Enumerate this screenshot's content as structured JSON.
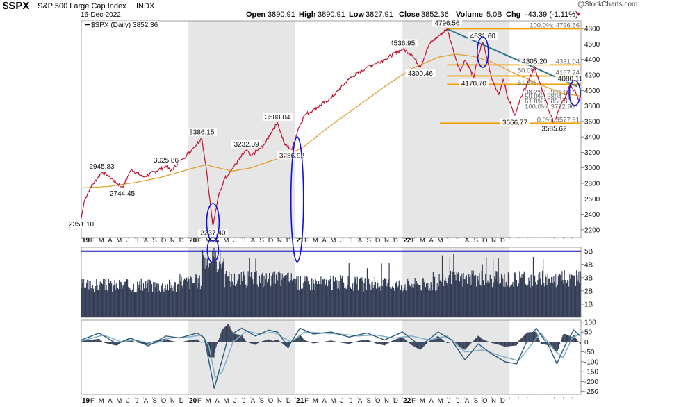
{
  "header": {
    "symbol": "$SPX",
    "name": "S&P 500 Large Cap Index",
    "exchange": "INDX",
    "date": "16-Dec-2022",
    "open_label": "Open",
    "open": "3890.91",
    "high_label": "High",
    "high": "3890.91",
    "low_label": "Low",
    "low": "3827.91",
    "close_label": "Close",
    "close": "3852.36",
    "volume_label": "Volume",
    "volume": "5.0B",
    "chg_label": "Chg",
    "chg": "-43.39 (-1.11%)",
    "chg_arrow": "▼",
    "watermark": "@StockCharts.com"
  },
  "legend": {
    "series": "$SPX (Daily) 3852.36"
  },
  "colors": {
    "price": "#c0102c",
    "ma": "#e0a030",
    "volume": "#333d55",
    "fib_orange": "#f0a000",
    "trendline": "#2f7a8a",
    "circle": "#1010dd",
    "macd_line": "#2b5a78",
    "macd_signal": "#7fb0c8",
    "histogram": "#333d55",
    "alt_band": "#e6e6e6"
  },
  "chart_data": [
    {
      "type": "line",
      "title": "$SPX (Daily) 3852.36",
      "ylim": [
        2100,
        4900
      ],
      "yticks": [
        2200,
        2400,
        2600,
        2800,
        3000,
        3200,
        3400,
        3600,
        3800,
        4000,
        4200,
        4400,
        4600,
        4800
      ],
      "x_years": [
        "19",
        "20",
        "21",
        "22"
      ],
      "x_months": [
        "F",
        "M",
        "A",
        "M",
        "J",
        "J",
        "A",
        "S",
        "O",
        "N",
        "D"
      ],
      "price_points": [
        {
          "t": 0.0,
          "v": 2351.1
        },
        {
          "t": 0.35,
          "v": 2580
        },
        {
          "t": 1.0,
          "v": 2740
        },
        {
          "t": 2.3,
          "v": 2945.83
        },
        {
          "t": 3.0,
          "v": 2900
        },
        {
          "t": 4.6,
          "v": 2744.45
        },
        {
          "t": 5.6,
          "v": 2980
        },
        {
          "t": 7.0,
          "v": 2880
        },
        {
          "t": 9.5,
          "v": 3025.86
        },
        {
          "t": 10.0,
          "v": 2960
        },
        {
          "t": 11.4,
          "v": 3120
        },
        {
          "t": 12.5,
          "v": 3250
        },
        {
          "t": 13.5,
          "v": 3386.15
        },
        {
          "t": 14.0,
          "v": 3000
        },
        {
          "t": 14.5,
          "v": 2500
        },
        {
          "t": 14.75,
          "v": 2237.4
        },
        {
          "t": 15.3,
          "v": 2600
        },
        {
          "t": 16.0,
          "v": 2850
        },
        {
          "t": 17.0,
          "v": 3000
        },
        {
          "t": 18.5,
          "v": 3232.39
        },
        {
          "t": 19.0,
          "v": 3150
        },
        {
          "t": 20.5,
          "v": 3300
        },
        {
          "t": 21.5,
          "v": 3500
        },
        {
          "t": 22.0,
          "v": 3580.84
        },
        {
          "t": 22.8,
          "v": 3300
        },
        {
          "t": 23.6,
          "v": 3236.92
        },
        {
          "t": 24.3,
          "v": 3500
        },
        {
          "t": 25.0,
          "v": 3680
        },
        {
          "t": 26.0,
          "v": 3750
        },
        {
          "t": 28.0,
          "v": 3900
        },
        {
          "t": 30.0,
          "v": 4150
        },
        {
          "t": 32.0,
          "v": 4300
        },
        {
          "t": 34.0,
          "v": 4400
        },
        {
          "t": 36.0,
          "v": 4536.95
        },
        {
          "t": 37.0,
          "v": 4470
        },
        {
          "t": 38.0,
          "v": 4300.46
        },
        {
          "t": 39.0,
          "v": 4600
        },
        {
          "t": 40.0,
          "v": 4700
        },
        {
          "t": 41.0,
          "v": 4796.56
        },
        {
          "t": 41.5,
          "v": 4600
        },
        {
          "t": 42.0,
          "v": 4400
        },
        {
          "t": 42.5,
          "v": 4250
        },
        {
          "t": 43.0,
          "v": 4400
        },
        {
          "t": 44.0,
          "v": 4170.7
        },
        {
          "t": 44.5,
          "v": 4450
        },
        {
          "t": 45.0,
          "v": 4631.6
        },
        {
          "t": 45.5,
          "v": 4400
        },
        {
          "t": 46.0,
          "v": 4150
        },
        {
          "t": 46.8,
          "v": 3950
        },
        {
          "t": 47.3,
          "v": 4150
        },
        {
          "t": 47.8,
          "v": 3900
        },
        {
          "t": 48.2,
          "v": 3800
        },
        {
          "t": 48.6,
          "v": 3666.77
        },
        {
          "t": 49.2,
          "v": 3900
        },
        {
          "t": 50.0,
          "v": 4100
        },
        {
          "t": 50.8,
          "v": 4305.2
        },
        {
          "t": 51.4,
          "v": 4100
        },
        {
          "t": 52.0,
          "v": 3900
        },
        {
          "t": 52.5,
          "v": 3700
        },
        {
          "t": 53.0,
          "v": 3585.62
        },
        {
          "t": 53.5,
          "v": 3750
        },
        {
          "t": 54.2,
          "v": 3900
        },
        {
          "t": 54.8,
          "v": 4080.11
        },
        {
          "t": 55.5,
          "v": 3950
        },
        {
          "t": 55.9,
          "v": 3852.36
        }
      ],
      "ma_points": [
        {
          "t": 0.0,
          "v": 2740
        },
        {
          "t": 3.0,
          "v": 2760
        },
        {
          "t": 6.0,
          "v": 2810
        },
        {
          "t": 9.0,
          "v": 2880
        },
        {
          "t": 12.0,
          "v": 2980
        },
        {
          "t": 14.0,
          "v": 3040
        },
        {
          "t": 15.0,
          "v": 3010
        },
        {
          "t": 17.0,
          "v": 2960
        },
        {
          "t": 19.0,
          "v": 3000
        },
        {
          "t": 21.0,
          "v": 3080
        },
        {
          "t": 23.0,
          "v": 3150
        },
        {
          "t": 25.0,
          "v": 3280
        },
        {
          "t": 28.0,
          "v": 3550
        },
        {
          "t": 31.0,
          "v": 3800
        },
        {
          "t": 34.0,
          "v": 4050
        },
        {
          "t": 37.0,
          "v": 4280
        },
        {
          "t": 40.0,
          "v": 4430
        },
        {
          "t": 42.0,
          "v": 4470
        },
        {
          "t": 44.0,
          "v": 4440
        },
        {
          "t": 46.0,
          "v": 4370
        },
        {
          "t": 48.0,
          "v": 4250
        },
        {
          "t": 50.0,
          "v": 4150
        },
        {
          "t": 52.0,
          "v": 4050
        },
        {
          "t": 54.0,
          "v": 3960
        },
        {
          "t": 55.9,
          "v": 3930
        }
      ],
      "annotations": [
        {
          "t": 0.0,
          "v": 2351.1,
          "text": "2351.10",
          "pos": "below"
        },
        {
          "t": 2.3,
          "v": 2945.83,
          "text": "2945.83",
          "pos": "above"
        },
        {
          "t": 4.6,
          "v": 2744.45,
          "text": "2744.45",
          "pos": "below"
        },
        {
          "t": 9.5,
          "v": 3025.86,
          "text": "3025.86",
          "pos": "above"
        },
        {
          "t": 13.5,
          "v": 3386.15,
          "text": "3386.15",
          "pos": "above"
        },
        {
          "t": 14.75,
          "v": 2237.4,
          "text": "2237.40",
          "pos": "below"
        },
        {
          "t": 18.5,
          "v": 3232.39,
          "text": "3232.39",
          "pos": "above"
        },
        {
          "t": 22.0,
          "v": 3580.84,
          "text": "3580.84",
          "pos": "above"
        },
        {
          "t": 23.6,
          "v": 3236.92,
          "text": "3236.92",
          "pos": "below"
        },
        {
          "t": 36.0,
          "v": 4536.95,
          "text": "4536.95",
          "pos": "above"
        },
        {
          "t": 38.0,
          "v": 4300.46,
          "text": "4300.46",
          "pos": "below"
        },
        {
          "t": 41.0,
          "v": 4796.56,
          "text": "4796.56",
          "pos": "above"
        },
        {
          "t": 45.0,
          "v": 4631.6,
          "text": "4631.60",
          "pos": "above"
        },
        {
          "t": 44.0,
          "v": 4170.7,
          "text": "4170.70",
          "pos": "below"
        },
        {
          "t": 50.8,
          "v": 4305.2,
          "text": "4305.20",
          "pos": "above"
        },
        {
          "t": 48.6,
          "v": 3666.77,
          "text": "3666.77",
          "pos": "below"
        },
        {
          "t": 53.0,
          "v": 3585.62,
          "text": "3585.62",
          "pos": "below"
        },
        {
          "t": 54.8,
          "v": 4080.11,
          "text": "4080.11",
          "pos": "above"
        }
      ],
      "horizontal_levels": [
        {
          "v": 4796.56,
          "text": "100.0%: 4796.56"
        },
        {
          "v": 4331.04,
          "text": "4331.04"
        },
        {
          "v": 4187.24,
          "text": "4187.24"
        },
        {
          "v": 4080.11,
          "text": ""
        },
        {
          "v": 3577.91,
          "text": "0.0%: 3577.91"
        }
      ],
      "fib_labels": [
        {
          "v": 4380,
          "text": "38.2%"
        },
        {
          "v": 4260,
          "text": "50.0%"
        },
        {
          "v": 4100,
          "text": "61.8%"
        },
        {
          "v": 3980,
          "text": "38.2%: 3931.60"
        },
        {
          "v": 3920,
          "text": "50.0%: 3894.10"
        },
        {
          "v": 3860,
          "text": "61.8%: 3856.80"
        },
        {
          "v": 3790,
          "text": "100.0%: 3722.90"
        }
      ],
      "trendline": [
        {
          "t": 41.0,
          "v": 4796.56
        },
        {
          "t": 55.6,
          "v": 4050
        }
      ]
    },
    {
      "type": "bar",
      "title": "Volume",
      "ylim": [
        0,
        5.3
      ],
      "yticks": [
        1,
        2,
        3,
        4,
        5
      ],
      "ytick_labels": [
        "1B",
        "2B",
        "3B",
        "4B",
        "5B"
      ],
      "reference_line": 5.0,
      "segments": [
        {
          "t0": 0.0,
          "t1": 11.0,
          "v": 2.4
        },
        {
          "t0": 11.0,
          "t1": 13.5,
          "v": 2.7
        },
        {
          "t0": 13.5,
          "t1": 16.0,
          "v": 4.3
        },
        {
          "t0": 16.0,
          "t1": 24.0,
          "v": 2.9
        },
        {
          "t0": 24.0,
          "t1": 30.0,
          "v": 2.6
        },
        {
          "t0": 30.0,
          "t1": 40.0,
          "v": 2.5
        },
        {
          "t0": 40.0,
          "t1": 56.0,
          "v": 2.9
        }
      ]
    },
    {
      "type": "line",
      "title": "MACD",
      "ylim": [
        -265,
        110
      ],
      "yticks": [
        100,
        50,
        0,
        -50,
        -100,
        -150,
        -200,
        -250
      ],
      "macd": [
        {
          "t": 0.0,
          "v": 10
        },
        {
          "t": 2.0,
          "v": 45
        },
        {
          "t": 4.0,
          "v": -10
        },
        {
          "t": 5.5,
          "v": 20
        },
        {
          "t": 7.5,
          "v": -20
        },
        {
          "t": 9.5,
          "v": 30
        },
        {
          "t": 11.0,
          "v": 20
        },
        {
          "t": 13.0,
          "v": 45
        },
        {
          "t": 13.8,
          "v": 20
        },
        {
          "t": 14.4,
          "v": -120
        },
        {
          "t": 14.9,
          "v": -235
        },
        {
          "t": 15.6,
          "v": -120
        },
        {
          "t": 16.5,
          "v": 30
        },
        {
          "t": 18.0,
          "v": 70
        },
        {
          "t": 19.5,
          "v": 30
        },
        {
          "t": 21.0,
          "v": 60
        },
        {
          "t": 22.0,
          "v": 50
        },
        {
          "t": 23.2,
          "v": -25
        },
        {
          "t": 24.5,
          "v": 70
        },
        {
          "t": 26.0,
          "v": 40
        },
        {
          "t": 28.0,
          "v": 50
        },
        {
          "t": 30.0,
          "v": 25
        },
        {
          "t": 32.0,
          "v": 45
        },
        {
          "t": 34.0,
          "v": 10
        },
        {
          "t": 36.0,
          "v": 50
        },
        {
          "t": 38.0,
          "v": -20
        },
        {
          "t": 40.0,
          "v": 50
        },
        {
          "t": 41.5,
          "v": 10
        },
        {
          "t": 43.0,
          "v": -90
        },
        {
          "t": 44.5,
          "v": -10
        },
        {
          "t": 46.0,
          "v": -60
        },
        {
          "t": 47.5,
          "v": -100
        },
        {
          "t": 48.8,
          "v": -110
        },
        {
          "t": 50.0,
          "v": 10
        },
        {
          "t": 51.0,
          "v": 70
        },
        {
          "t": 52.5,
          "v": -30
        },
        {
          "t": 53.3,
          "v": -110
        },
        {
          "t": 54.3,
          "v": -10
        },
        {
          "t": 55.2,
          "v": 60
        },
        {
          "t": 55.9,
          "v": 30
        }
      ],
      "signal": [
        {
          "t": 0.0,
          "v": 5
        },
        {
          "t": 2.5,
          "v": 35
        },
        {
          "t": 4.5,
          "v": 0
        },
        {
          "t": 6.0,
          "v": 10
        },
        {
          "t": 8.0,
          "v": -10
        },
        {
          "t": 10.0,
          "v": 20
        },
        {
          "t": 12.0,
          "v": 25
        },
        {
          "t": 13.5,
          "v": 35
        },
        {
          "t": 14.3,
          "v": -20
        },
        {
          "t": 15.0,
          "v": -180
        },
        {
          "t": 15.8,
          "v": -150
        },
        {
          "t": 17.0,
          "v": 0
        },
        {
          "t": 18.5,
          "v": 55
        },
        {
          "t": 20.0,
          "v": 40
        },
        {
          "t": 21.5,
          "v": 50
        },
        {
          "t": 23.5,
          "v": 0
        },
        {
          "t": 25.0,
          "v": 50
        },
        {
          "t": 27.0,
          "v": 45
        },
        {
          "t": 29.0,
          "v": 40
        },
        {
          "t": 31.0,
          "v": 30
        },
        {
          "t": 33.0,
          "v": 35
        },
        {
          "t": 35.0,
          "v": 20
        },
        {
          "t": 37.0,
          "v": 30
        },
        {
          "t": 39.0,
          "v": 10
        },
        {
          "t": 41.0,
          "v": 30
        },
        {
          "t": 43.0,
          "v": -50
        },
        {
          "t": 45.0,
          "v": -40
        },
        {
          "t": 47.0,
          "v": -70
        },
        {
          "t": 49.0,
          "v": -95
        },
        {
          "t": 50.5,
          "v": -10
        },
        {
          "t": 51.5,
          "v": 45
        },
        {
          "t": 53.0,
          "v": -40
        },
        {
          "t": 54.0,
          "v": -80
        },
        {
          "t": 55.0,
          "v": 20
        },
        {
          "t": 55.9,
          "v": 40
        }
      ]
    }
  ]
}
